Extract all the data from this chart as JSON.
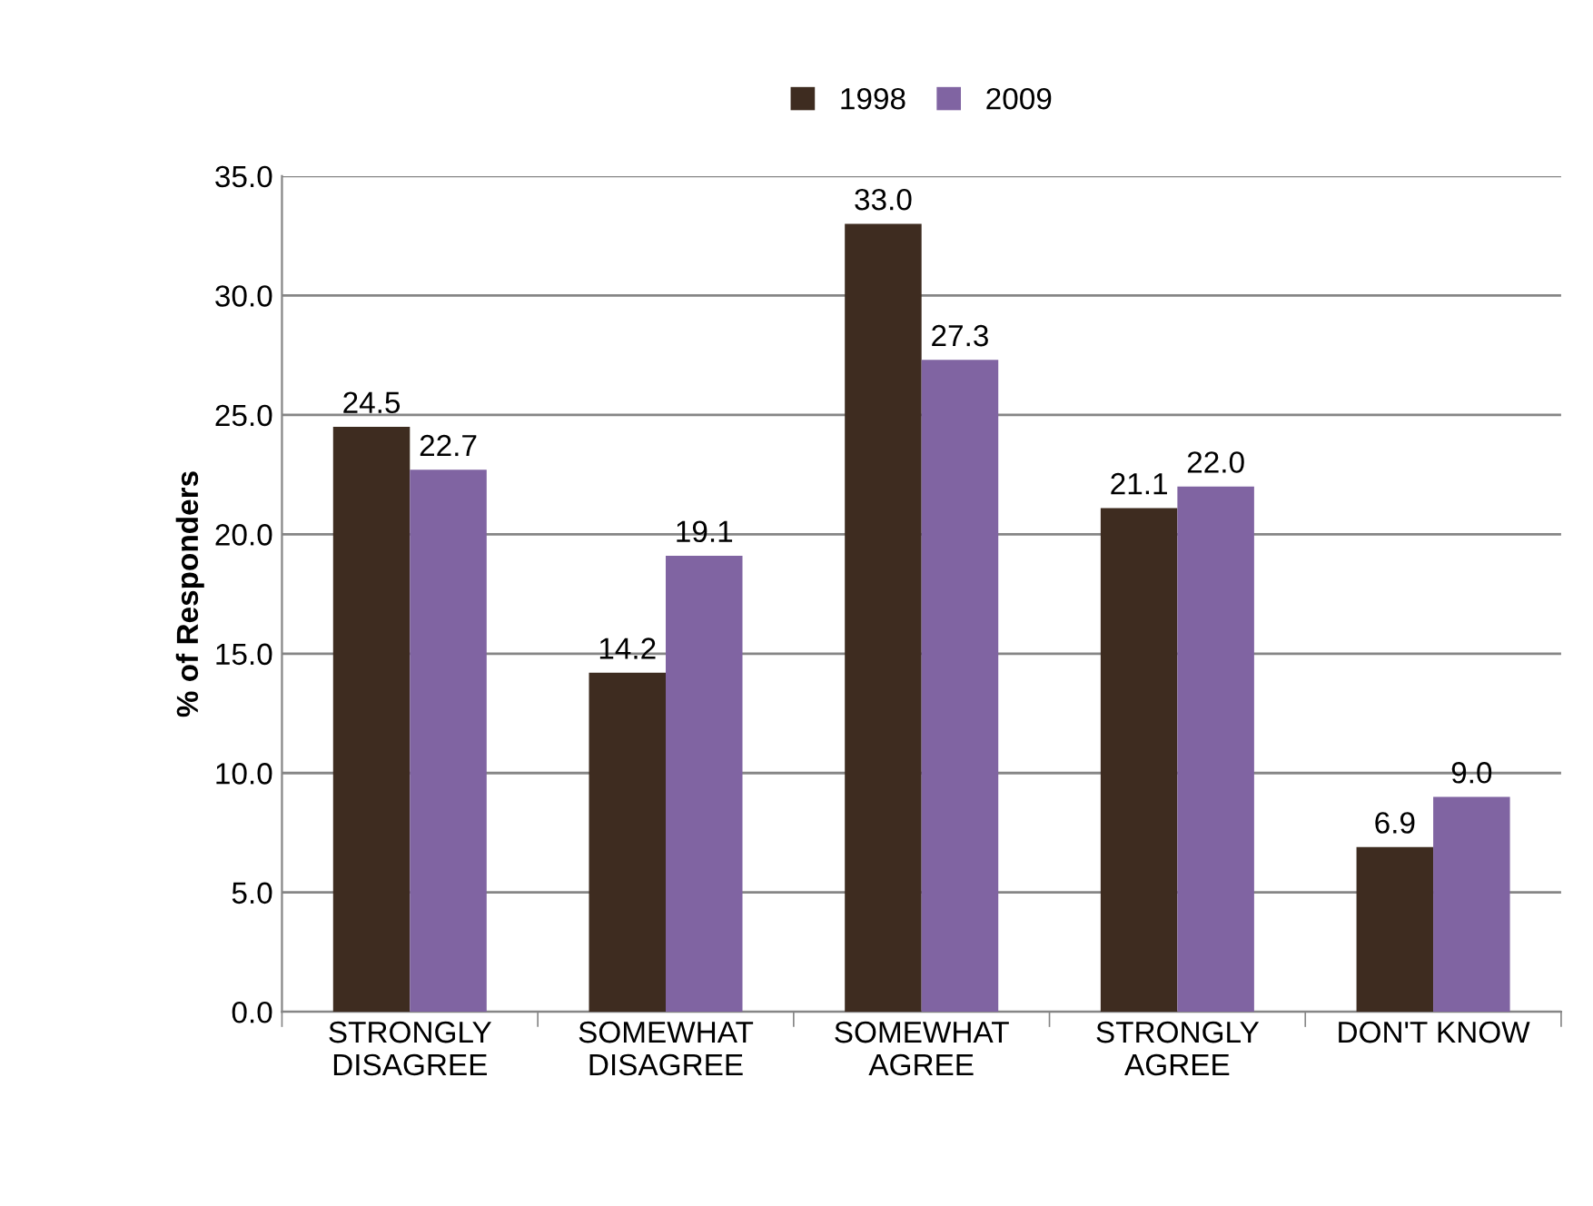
{
  "chart_data": {
    "type": "bar",
    "ylabel": "% of Responders",
    "categories": [
      "STRONGLY\nDISAGREE",
      "SOMEWHAT\nDISAGREE",
      "SOMEWHAT\nAGREE",
      "STRONGLY\nAGREE",
      "DON'T KNOW"
    ],
    "series": [
      {
        "name": "1998",
        "color": "#3e2c20",
        "values": [
          24.5,
          14.2,
          33.0,
          21.1,
          6.9
        ],
        "value_labels": [
          "24.5",
          "14.2",
          "33.0",
          "21.1",
          "6.9"
        ]
      },
      {
        "name": "2009",
        "color": "#8064a2",
        "values": [
          22.7,
          19.1,
          27.3,
          22.0,
          9.0
        ],
        "value_labels": [
          "22.7",
          "19.1",
          "27.3",
          "22.0",
          "9.0"
        ]
      }
    ],
    "ylim": [
      0,
      35
    ],
    "yticks": [
      {
        "value": 0,
        "label": "0.0"
      },
      {
        "value": 5,
        "label": "5.0"
      },
      {
        "value": 10,
        "label": "10.0"
      },
      {
        "value": 15,
        "label": "15.0"
      },
      {
        "value": 20,
        "label": "20.0"
      },
      {
        "value": 25,
        "label": "25.0"
      },
      {
        "value": 30,
        "label": "30.0"
      },
      {
        "value": 35,
        "label": "35.0"
      }
    ],
    "grid": "y",
    "legend": "top"
  }
}
